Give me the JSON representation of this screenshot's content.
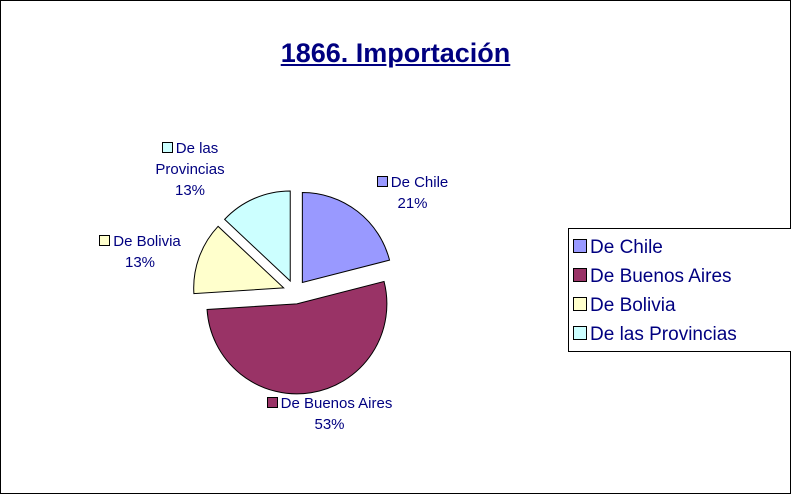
{
  "chart_data": {
    "type": "pie",
    "title": "1866. Importación",
    "categories": [
      "De Chile",
      "De Buenos Aires",
      "De Bolivia",
      "De las Provincias"
    ],
    "values": [
      21,
      53,
      13,
      13
    ],
    "value_labels": [
      "21%",
      "53%",
      "13%",
      "13%"
    ],
    "colors": [
      "#9999ff",
      "#993366",
      "#ffffcc",
      "#ccffff"
    ],
    "legend": "right"
  }
}
